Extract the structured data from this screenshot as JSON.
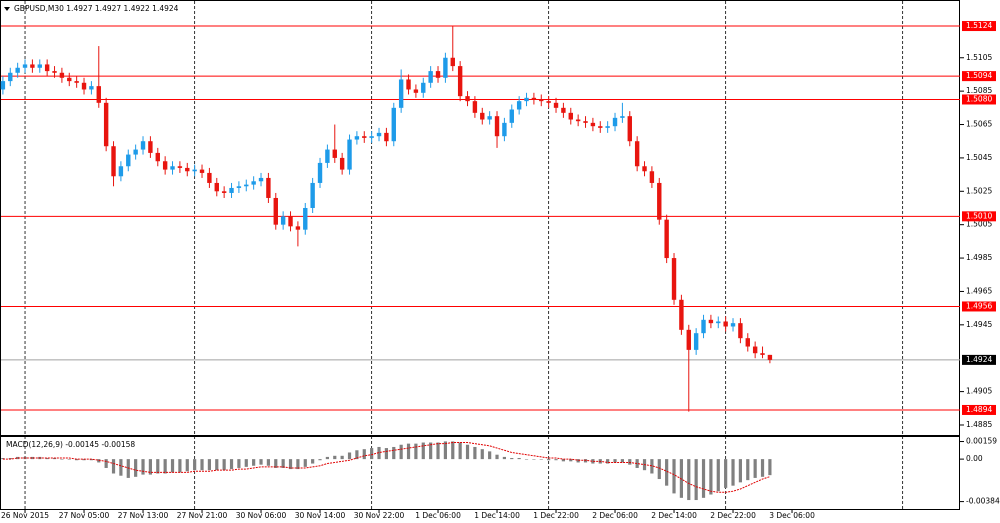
{
  "chart_data": [
    {
      "type": "candlestick",
      "title": "GBPUSD,M30  1.4927 1.4927 1.4922 1.4924",
      "up_color": "#1e9be9",
      "down_color": "#e8150f",
      "open": [
        1.5086,
        1.5091,
        1.5096,
        1.5099,
        1.5101,
        1.5099,
        1.5101,
        1.5097,
        1.5096,
        1.5093,
        1.5091,
        1.509,
        1.5086,
        1.5088,
        1.5078,
        1.5052,
        1.5034,
        1.504,
        1.5047,
        1.505,
        1.5055,
        1.5048,
        1.5043,
        1.5038,
        1.504,
        1.5039,
        1.5037,
        1.5038,
        1.5036,
        1.503,
        1.5025,
        1.5024,
        1.5027,
        1.5028,
        1.5029,
        1.5031,
        1.5033,
        1.5021,
        1.5005,
        1.501,
        1.5004,
        1.5002,
        1.5015,
        1.503,
        1.5042,
        1.505,
        1.5045,
        1.5038,
        1.5056,
        1.5058,
        1.5057,
        1.5058,
        1.506,
        1.5055,
        1.5075,
        1.5092,
        1.5086,
        1.5084,
        1.509,
        1.5097,
        1.5093,
        1.5105,
        1.51,
        1.5082,
        1.5079,
        1.5072,
        1.5068,
        1.507,
        1.5058,
        1.5066,
        1.5074,
        1.5079,
        1.5081,
        1.508,
        1.5079,
        1.5078,
        1.5075,
        1.5072,
        1.5068,
        1.5067,
        1.5066,
        1.5064,
        1.5063,
        1.5064,
        1.5069,
        1.507,
        1.5055,
        1.504,
        1.5037,
        1.503,
        1.5008,
        1.4985,
        1.496,
        1.4942,
        1.493,
        1.494,
        1.4948,
        1.4946,
        1.4947,
        1.4944,
        1.4946,
        1.4937,
        1.4932,
        1.4928,
        1.4927
      ],
      "high": [
        1.5094,
        1.5099,
        1.5102,
        1.5104,
        1.5104,
        1.5104,
        1.5104,
        1.51,
        1.5099,
        1.5096,
        1.5094,
        1.5093,
        1.5091,
        1.5112,
        1.5081,
        1.5055,
        1.5043,
        1.505,
        1.5053,
        1.5058,
        1.5058,
        1.5051,
        1.5046,
        1.5043,
        1.5043,
        1.5042,
        1.5041,
        1.5041,
        1.5039,
        1.5033,
        1.5028,
        1.503,
        1.5031,
        1.5032,
        1.5034,
        1.5036,
        1.5036,
        1.5024,
        1.5013,
        1.5013,
        1.5007,
        1.5018,
        1.5033,
        1.5045,
        1.5053,
        1.5065,
        1.5048,
        1.5059,
        1.5061,
        1.5061,
        1.5061,
        1.5063,
        1.5063,
        1.5078,
        1.5098,
        1.5095,
        1.5089,
        1.5093,
        1.51,
        1.51,
        1.5108,
        1.5124,
        1.5103,
        1.5085,
        1.5082,
        1.5075,
        1.5073,
        1.5073,
        1.5069,
        1.5077,
        1.5082,
        1.5084,
        1.5084,
        1.5083,
        1.5082,
        1.5081,
        1.5078,
        1.5075,
        1.5071,
        1.507,
        1.5069,
        1.5067,
        1.5067,
        1.5072,
        1.5078,
        1.5073,
        1.5058,
        1.5043,
        1.504,
        1.5033,
        1.5011,
        1.4988,
        1.4963,
        1.4945,
        1.4943,
        1.4951,
        1.4951,
        1.495,
        1.495,
        1.4949,
        1.4949,
        1.494,
        1.4935,
        1.4932,
        1.4927
      ],
      "low": [
        1.5083,
        1.5088,
        1.5093,
        1.5096,
        1.5096,
        1.5096,
        1.5094,
        1.5093,
        1.509,
        1.5088,
        1.5087,
        1.5083,
        1.5083,
        1.5075,
        1.5049,
        1.5028,
        1.5031,
        1.5037,
        1.5044,
        1.5047,
        1.5045,
        1.504,
        1.5035,
        1.5035,
        1.5036,
        1.5034,
        1.5034,
        1.5033,
        1.5027,
        1.5022,
        1.5021,
        1.5021,
        1.5024,
        1.5025,
        1.5026,
        1.5028,
        1.5018,
        1.5002,
        1.5002,
        1.5001,
        1.4992,
        1.4999,
        1.5012,
        1.5027,
        1.5039,
        1.5042,
        1.5035,
        1.5035,
        1.5053,
        1.5054,
        1.5054,
        1.5055,
        1.5052,
        1.5052,
        1.5072,
        1.5083,
        1.5081,
        1.5081,
        1.5087,
        1.509,
        1.509,
        1.5097,
        1.5079,
        1.5076,
        1.5069,
        1.5065,
        1.5065,
        1.5051,
        1.5055,
        1.5063,
        1.5071,
        1.5076,
        1.5077,
        1.5076,
        1.5075,
        1.5072,
        1.5069,
        1.5065,
        1.5064,
        1.5063,
        1.5061,
        1.506,
        1.506,
        1.5061,
        1.5066,
        1.5052,
        1.5037,
        1.5034,
        1.5027,
        1.5005,
        1.4982,
        1.4957,
        1.4939,
        1.4893,
        1.4927,
        1.4937,
        1.4943,
        1.4943,
        1.4941,
        1.4941,
        1.4934,
        1.4929,
        1.4925,
        1.4925,
        1.4922
      ],
      "close": [
        1.5091,
        1.5096,
        1.5099,
        1.5101,
        1.5099,
        1.5101,
        1.5097,
        1.5096,
        1.5093,
        1.5091,
        1.509,
        1.5086,
        1.5088,
        1.5078,
        1.5052,
        1.5034,
        1.504,
        1.5047,
        1.505,
        1.5055,
        1.5048,
        1.5043,
        1.5038,
        1.504,
        1.5039,
        1.5037,
        1.5038,
        1.5036,
        1.503,
        1.5025,
        1.5024,
        1.5027,
        1.5028,
        1.5029,
        1.5031,
        1.5033,
        1.5021,
        1.5005,
        1.501,
        1.5004,
        1.5002,
        1.5015,
        1.503,
        1.5042,
        1.505,
        1.5045,
        1.5038,
        1.5056,
        1.5058,
        1.5057,
        1.5058,
        1.506,
        1.5055,
        1.5075,
        1.5092,
        1.5086,
        1.5084,
        1.509,
        1.5097,
        1.5093,
        1.5105,
        1.51,
        1.5082,
        1.5079,
        1.5072,
        1.5068,
        1.507,
        1.5058,
        1.5066,
        1.5074,
        1.5079,
        1.5081,
        1.508,
        1.5079,
        1.5078,
        1.5075,
        1.5072,
        1.5068,
        1.5067,
        1.5066,
        1.5064,
        1.5063,
        1.5064,
        1.5069,
        1.507,
        1.5055,
        1.504,
        1.5037,
        1.503,
        1.5008,
        1.4985,
        1.496,
        1.4942,
        1.493,
        1.494,
        1.4948,
        1.4946,
        1.4947,
        1.4944,
        1.4946,
        1.4937,
        1.4932,
        1.4928,
        1.4927,
        1.4924
      ],
      "xlim": [
        0,
        130
      ],
      "xticks": [
        {
          "value": 3,
          "label": "26 Nov 2015"
        },
        {
          "value": 11,
          "label": "27 Nov 05:00"
        },
        {
          "value": 19,
          "label": "27 Nov 13:00"
        },
        {
          "value": 27,
          "label": "27 Nov 21:00"
        },
        {
          "value": 35,
          "label": "30 Nov 06:00"
        },
        {
          "value": 43,
          "label": "30 Nov 14:00"
        },
        {
          "value": 51,
          "label": "30 Nov 22:00"
        },
        {
          "value": 59,
          "label": "1 Dec 06:00"
        },
        {
          "value": 67,
          "label": "1 Dec 14:00"
        },
        {
          "value": 75,
          "label": "1 Dec 22:00"
        },
        {
          "value": 83,
          "label": "2 Dec 06:00"
        },
        {
          "value": 91,
          "label": "2 Dec 14:00"
        },
        {
          "value": 99,
          "label": "2 Dec 22:00"
        },
        {
          "value": 107,
          "label": "3 Dec 06:00"
        }
      ],
      "separators": [
        3,
        26,
        50,
        74,
        98,
        122
      ],
      "ylim": [
        1.4879,
        1.5139
      ],
      "yticks": [
        1.5105,
        1.5085,
        1.5065,
        1.5045,
        1.5025,
        1.5005,
        1.4985,
        1.4965,
        1.4945,
        1.4905,
        1.4885
      ],
      "levels": [
        1.5124,
        1.5094,
        {
          "value": 1.508,
          "label": "1.5080"
        },
        {
          "value": 1.501,
          "label": "1.5010"
        },
        1.4956,
        1.4894
      ],
      "level_color": "#ff0000",
      "last_price": 1.4924
    },
    {
      "type": "macd",
      "title": "MACD(12,26,9) -0.00145 -0.00158",
      "series": [
        {
          "style": "histogram",
          "color": "#808080",
          "values": [
            0.0001,
            0.0001,
            0.0002,
            0.0002,
            0.0002,
            0.0002,
            0.0001,
            0.0001,
            0,
            0,
            -0.0001,
            -0.0001,
            -0.0001,
            -0.0003,
            -0.0008,
            -0.0013,
            -0.0015,
            -0.0017,
            -0.0016,
            -0.0014,
            -0.0014,
            -0.0013,
            -0.0013,
            -0.0012,
            -0.0012,
            -0.0011,
            -0.001,
            -0.001,
            -0.001,
            -0.001,
            -0.001,
            -0.0009,
            -0.0008,
            -0.0007,
            -0.0006,
            -0.0005,
            -0.0006,
            -0.0008,
            -0.0008,
            -0.0009,
            -0.0009,
            -0.0007,
            -0.0004,
            -0.0001,
            0.0002,
            0.0003,
            0.0003,
            0.0006,
            0.0008,
            0.0009,
            0.001,
            0.0011,
            0.001,
            0.0011,
            0.0013,
            0.0014,
            0.0014,
            0.0015,
            0.0015,
            0.0015,
            0.0016,
            0.0016,
            0.0015,
            0.0013,
            0.0011,
            0.0009,
            0.0007,
            0.0004,
            0.0002,
            0.0001,
            0.0001,
            0,
            0,
            0,
            -0.0001,
            -0.0001,
            -0.0002,
            -0.0002,
            -0.0003,
            -0.0003,
            -0.0004,
            -0.0004,
            -0.0004,
            -0.0003,
            -0.0003,
            -0.0005,
            -0.0008,
            -0.001,
            -0.0013,
            -0.0018,
            -0.0024,
            -0.0031,
            -0.0035,
            -0.0037,
            -0.0037,
            -0.0035,
            -0.0032,
            -0.0029,
            -0.0026,
            -0.0024,
            -0.0021,
            -0.0019,
            -0.0017,
            -0.0016,
            -0.00145
          ]
        },
        {
          "style": "dotted",
          "color": "#e00000",
          "values": [
            0,
            0,
            0.0001,
            0.0001,
            0.0001,
            0.0001,
            0.0001,
            0.0001,
            0.0001,
            0.0001,
            0,
            0,
            0,
            -0.0001,
            -0.0002,
            -0.0004,
            -0.0006,
            -0.0008,
            -0.001,
            -0.0011,
            -0.0012,
            -0.0012,
            -0.0012,
            -0.0012,
            -0.0012,
            -0.0012,
            -0.0011,
            -0.0011,
            -0.0011,
            -0.001,
            -0.001,
            -0.001,
            -0.0009,
            -0.0009,
            -0.0008,
            -0.0007,
            -0.0007,
            -0.0007,
            -0.0007,
            -0.0008,
            -0.0008,
            -0.0008,
            -0.0007,
            -0.0006,
            -0.0004,
            -0.0003,
            -0.0002,
            -0.0001,
            0.0001,
            0.0003,
            0.0004,
            0.0006,
            0.0007,
            0.0008,
            0.0009,
            0.001,
            0.0011,
            0.0012,
            0.0013,
            0.0014,
            0.0014,
            0.0015,
            0.0015,
            0.0015,
            0.0014,
            0.0013,
            0.0012,
            0.001,
            0.0008,
            0.0006,
            0.0005,
            0.0004,
            0.0003,
            0.0002,
            0.0001,
            0.0001,
            0,
            0,
            -0.0001,
            -0.0001,
            -0.0002,
            -0.0002,
            -0.0003,
            -0.0003,
            -0.0003,
            -0.0003,
            -0.0004,
            -0.0005,
            -0.0006,
            -0.0008,
            -0.0011,
            -0.0014,
            -0.0018,
            -0.0022,
            -0.0025,
            -0.0027,
            -0.0029,
            -0.003,
            -0.003,
            -0.0029,
            -0.0027,
            -0.0024,
            -0.0021,
            -0.0018,
            -0.00158
          ]
        }
      ],
      "ylim": [
        -0.0046,
        0.002
      ],
      "yticks": [
        0.00159,
        {
          "value": 0,
          "label": "0.00"
        },
        -0.00384
      ]
    }
  ]
}
